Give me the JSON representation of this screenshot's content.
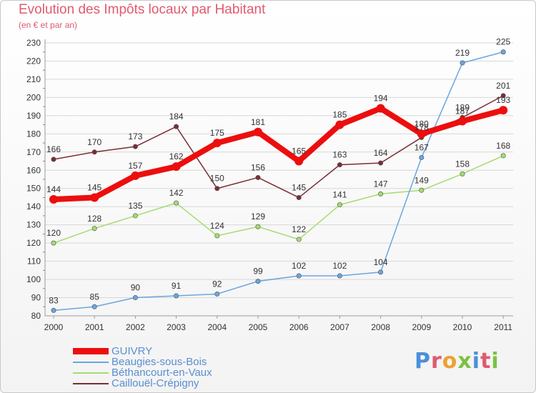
{
  "header": {
    "title": "Evolution des Impôts locaux par Habitant",
    "subtitle": "(en € et par an)"
  },
  "logo": {
    "text": "Proxiti",
    "letter_colors": [
      "#4a90d9",
      "#e05a6e",
      "#f0a030",
      "#7cc242",
      "#4a90d9",
      "#e05a6e",
      "#7cc242"
    ]
  },
  "colors": {
    "grid": "#d7d7d7",
    "axis": "#9a9a9a",
    "tick_label": "#333333",
    "minor_tick": "#e05a6e"
  },
  "chart_data": {
    "type": "line",
    "title": "Evolution des Impôts locaux par Habitant",
    "subtitle": "(en € et par an)",
    "xlabel": "",
    "ylabel": "",
    "x": [
      2000,
      2001,
      2002,
      2003,
      2004,
      2005,
      2006,
      2007,
      2008,
      2009,
      2010,
      2011
    ],
    "ylim": [
      80,
      230
    ],
    "yticks": [
      80,
      90,
      100,
      110,
      120,
      130,
      140,
      150,
      160,
      170,
      180,
      190,
      200,
      210,
      220,
      230
    ],
    "grid": "horizontal",
    "legend_position": "bottom-left",
    "series": [
      {
        "name": "Caillouël-Crépigny",
        "color": "#7a2e34",
        "values": [
          166,
          170,
          173,
          184,
          150,
          156,
          145,
          163,
          164,
          178,
          189,
          201
        ],
        "labels": [
          "166",
          "170",
          "173",
          "184",
          "150",
          "156",
          "145",
          "163",
          "164",
          "178",
          "189",
          "201"
        ]
      },
      {
        "name": "Béthancourt-en-Vaux",
        "color": "#a4dc6e",
        "values": [
          120,
          128,
          135,
          142,
          124,
          129,
          122,
          141,
          147,
          149,
          158,
          168
        ],
        "labels": [
          "120",
          "128",
          "135",
          "142",
          "124",
          "129",
          "122",
          "141",
          "147",
          "149",
          "158",
          "168"
        ]
      },
      {
        "name": "Beaugies-sous-Bois",
        "color": "#6aa6de",
        "values": [
          83,
          85,
          90,
          91,
          92,
          99,
          102,
          102,
          104,
          167,
          219,
          225
        ],
        "labels": [
          "83",
          "85",
          "90",
          "91",
          "92",
          "99",
          "102",
          "102",
          "104",
          "167",
          "219",
          "225"
        ]
      },
      {
        "name": "GUIVRY",
        "color": "#ec0e0e",
        "values": [
          144,
          145,
          157,
          162,
          175,
          181,
          165,
          185,
          194,
          180,
          187,
          193
        ],
        "labels": [
          "144",
          "145",
          "157",
          "162",
          "175",
          "181",
          "165",
          "185",
          "194",
          "180",
          "187",
          "193"
        ]
      }
    ],
    "legend": [
      {
        "name": "GUIVRY",
        "color": "#ec0e0e"
      },
      {
        "name": "Beaugies-sous-Bois",
        "color": "#6aa6de"
      },
      {
        "name": "Béthancourt-en-Vaux",
        "color": "#a4dc6e"
      },
      {
        "name": "Caillouël-Crépigny",
        "color": "#7a2e34"
      }
    ]
  }
}
